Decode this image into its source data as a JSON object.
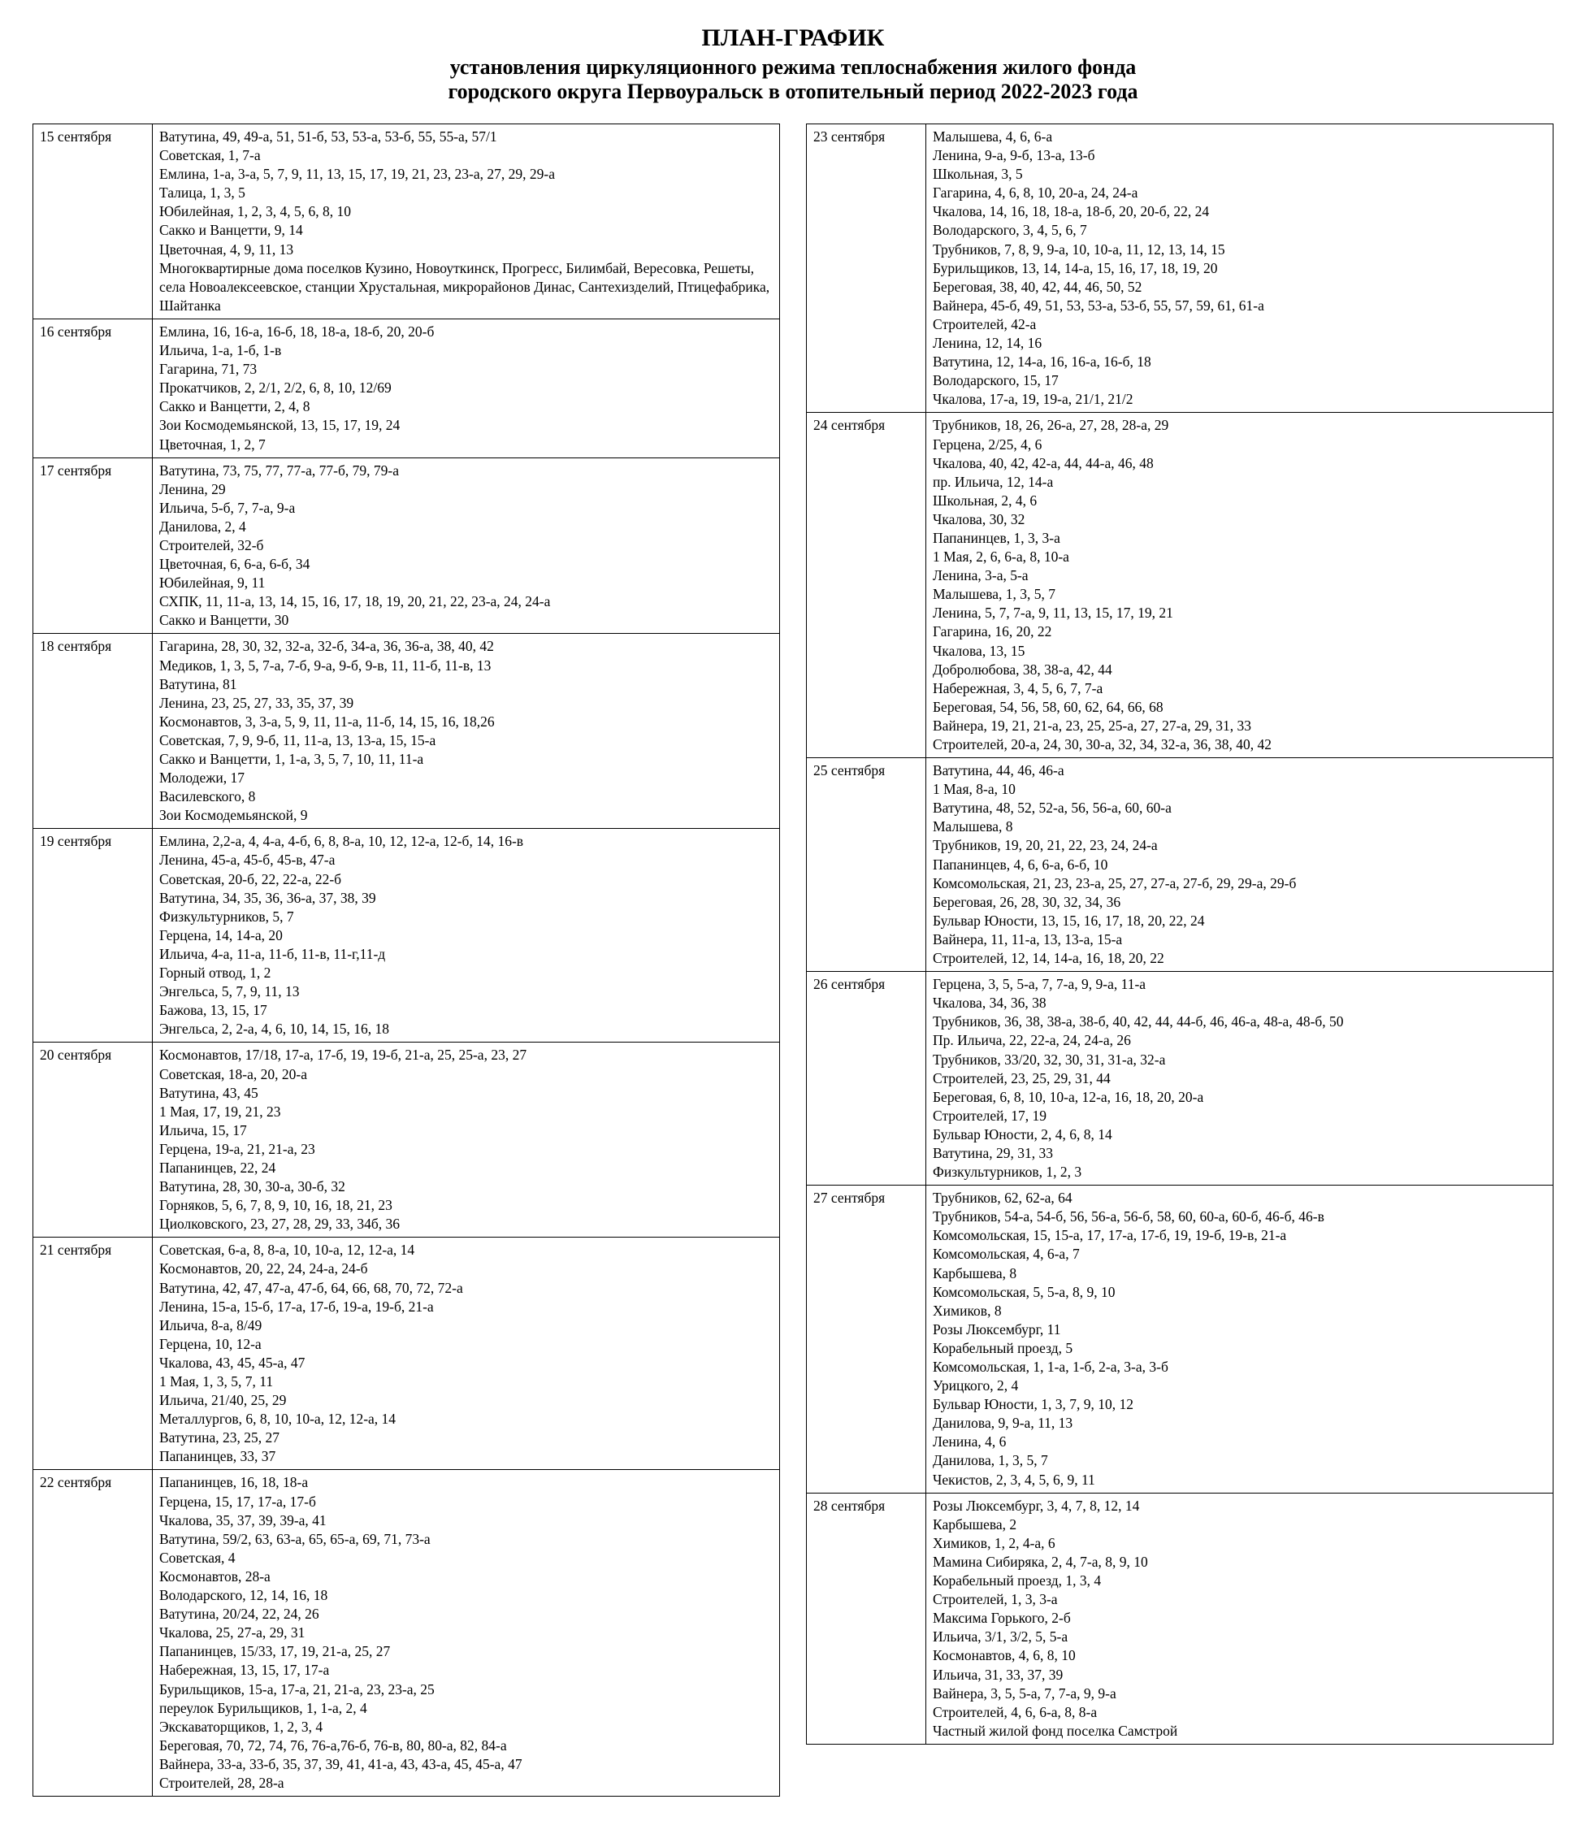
{
  "title": {
    "line1": "ПЛАН-ГРАФИК",
    "line2": "установления циркуляционного режима теплоснабжения жилого фонда",
    "line3": "городского округа Первоуральск в отопительный период 2022-2023 года"
  },
  "leftRows": [
    {
      "date": "15 сентября",
      "lines": [
        "Ватутина, 49, 49-а, 51, 51-б, 53, 53-а, 53-б, 55, 55-а, 57/1",
        "Советская, 1, 7-а",
        "Емлина, 1-а, 3-а, 5, 7, 9, 11, 13, 15, 17, 19, 21, 23, 23-а, 27, 29, 29-а",
        "Талица, 1, 3, 5",
        "Юбилейная, 1, 2, 3, 4, 5, 6, 8, 10",
        "Сакко и Ванцетти, 9, 14",
        "Цветочная, 4, 9, 11, 13",
        "Многоквартирные дома поселков Кузино, Новоуткинск, Прогресс, Билимбай, Вересовка, Решеты, села Новоалексеевское, станции Хрустальная, микрорайонов Динас, Сантехизделий, Птицефабрика, Шайтанка"
      ]
    },
    {
      "date": "16 сентября",
      "lines": [
        "Емлина, 16, 16-а, 16-б, 18, 18-а, 18-б, 20, 20-б",
        "Ильича, 1-а, 1-б, 1-в",
        "Гагарина, 71, 73",
        "Прокатчиков, 2, 2/1, 2/2, 6, 8, 10, 12/69",
        "Сакко и Ванцетти, 2, 4, 8",
        "Зои Космодемьянской, 13, 15, 17, 19, 24",
        "Цветочная, 1, 2, 7"
      ]
    },
    {
      "date": "17 сентября",
      "lines": [
        "Ватутина, 73, 75, 77, 77-а, 77-б, 79, 79-а",
        "Ленина, 29",
        "Ильича, 5-б, 7, 7-а, 9-а",
        "Данилова, 2, 4",
        "Строителей, 32-б",
        "Цветочная, 6, 6-а, 6-б, 34",
        "Юбилейная, 9, 11",
        "СХПК, 11, 11-а, 13, 14, 15, 16, 17, 18, 19, 20, 21, 22, 23-а, 24, 24-а",
        "Сакко и Ванцетти, 30"
      ]
    },
    {
      "date": "18 сентября",
      "lines": [
        "Гагарина, 28, 30, 32, 32-а, 32-б, 34-а, 36, 36-а, 38, 40, 42",
        "Медиков, 1, 3, 5, 7-а, 7-б, 9-а, 9-б, 9-в, 11, 11-б, 11-в, 13",
        "Ватутина, 81",
        "Ленина, 23, 25, 27, 33, 35, 37, 39",
        "Космонавтов, 3, 3-а, 5, 9, 11, 11-а, 11-б, 14, 15, 16, 18,26",
        "Советская, 7, 9, 9-б, 11, 11-а, 13, 13-а, 15, 15-а",
        "Сакко и Ванцетти, 1, 1-а, 3, 5, 7, 10, 11, 11-а",
        "Молодежи, 17",
        "Василевского, 8",
        "Зои Космодемьянской, 9"
      ]
    },
    {
      "date": "19 сентября",
      "lines": [
        "Емлина, 2,2-а, 4, 4-а, 4-б, 6, 8, 8-а, 10, 12, 12-а, 12-б, 14, 16-в",
        "Ленина, 45-а, 45-б, 45-в, 47-а",
        "Советская, 20-б, 22, 22-а, 22-б",
        "Ватутина, 34, 35, 36, 36-а, 37, 38, 39",
        "Физкультурников, 5, 7",
        "Герцена, 14, 14-а, 20",
        "Ильича, 4-а, 11-а, 11-б, 11-в, 11-г,11-д",
        "Горный отвод, 1, 2",
        "Энгельса, 5, 7, 9, 11, 13",
        "Бажова, 13, 15, 17",
        "Энгельса, 2, 2-а, 4, 6, 10, 14, 15, 16, 18"
      ]
    },
    {
      "date": "20 сентября",
      "lines": [
        "Космонавтов, 17/18, 17-а, 17-б, 19, 19-б, 21-а, 25, 25-а, 23, 27",
        "Советская, 18-а, 20, 20-а",
        "Ватутина, 43, 45",
        "1 Мая, 17, 19, 21, 23",
        "Ильича, 15, 17",
        "Герцена, 19-а, 21, 21-а, 23",
        "Папанинцев, 22, 24",
        "Ватутина, 28, 30, 30-а, 30-б, 32",
        "Горняков, 5, 6, 7, 8, 9, 10, 16, 18, 21, 23",
        "Циолковского, 23, 27, 28, 29, 33, 34б, 36"
      ]
    },
    {
      "date": "21 сентября",
      "lines": [
        "Советская, 6-а, 8, 8-а, 10, 10-а, 12, 12-а, 14",
        "Космонавтов, 20, 22, 24, 24-а, 24-б",
        "Ватутина, 42, 47, 47-а, 47-б, 64, 66, 68, 70, 72, 72-а",
        "Ленина, 15-а, 15-б, 17-а, 17-б, 19-а, 19-б, 21-а",
        "Ильича, 8-а, 8/49",
        "Герцена, 10, 12-а",
        "Чкалова, 43, 45, 45-а, 47",
        "1 Мая, 1, 3, 5, 7, 11",
        "Ильича, 21/40, 25, 29",
        "Металлургов, 6, 8, 10, 10-а, 12, 12-а, 14",
        "Ватутина, 23, 25, 27",
        "Папанинцев, 33, 37"
      ]
    },
    {
      "date": "22 сентября",
      "lines": [
        "Папанинцев, 16, 18, 18-а",
        "Герцена, 15, 17, 17-а, 17-б",
        "Чкалова, 35, 37, 39, 39-а, 41",
        "Ватутина, 59/2, 63, 63-а, 65, 65-а, 69, 71, 73-а",
        "Советская, 4",
        "Космонавтов, 28-а",
        "Володарского, 12, 14, 16, 18",
        "Ватутина, 20/24, 22, 24, 26",
        "Чкалова, 25, 27-а, 29, 31",
        "Папанинцев, 15/33, 17, 19, 21-а, 25, 27",
        "Набережная, 13, 15, 17, 17-а",
        "Бурильщиков, 15-а, 17-а, 21, 21-а, 23, 23-а, 25",
        "переулок Бурильщиков, 1, 1-а, 2, 4",
        "Экскаваторщиков, 1, 2, 3, 4",
        "Береговая, 70, 72, 74, 76, 76-а,76-б, 76-в, 80, 80-а, 82, 84-а",
        "Вайнера, 33-а, 33-б, 35, 37, 39, 41, 41-а, 43, 43-а, 45, 45-а, 47",
        "Строителей, 28, 28-а"
      ]
    }
  ],
  "rightRows": [
    {
      "date": "23 сентября",
      "lines": [
        "Малышева, 4, 6, 6-а",
        "Ленина, 9-а, 9-б, 13-а, 13-б",
        "Школьная, 3, 5",
        "Гагарина, 4, 6, 8, 10, 20-а, 24, 24-а",
        "Чкалова, 14, 16, 18, 18-а, 18-б, 20, 20-б, 22, 24",
        "Володарского, 3, 4, 5, 6, 7",
        "Трубников, 7, 8, 9, 9-а, 10, 10-а, 11, 12, 13, 14, 15",
        "Бурильщиков, 13, 14, 14-а, 15, 16, 17, 18, 19, 20",
        "Береговая, 38, 40, 42, 44, 46, 50, 52",
        "Вайнера, 45-б, 49, 51, 53, 53-а, 53-б, 55, 57, 59, 61, 61-а",
        "Строителей, 42-а",
        "Ленина, 12, 14, 16",
        "Ватутина, 12, 14-а, 16, 16-а, 16-б, 18",
        "Володарского, 15, 17",
        "Чкалова, 17-а, 19, 19-а, 21/1, 21/2"
      ]
    },
    {
      "date": "24 сентября",
      "lines": [
        "Трубников, 18, 26, 26-а, 27, 28, 28-а, 29",
        "Герцена, 2/25, 4, 6",
        "Чкалова, 40, 42, 42-а, 44, 44-а, 46, 48",
        "пр. Ильича, 12, 14-а",
        "Школьная, 2, 4, 6",
        "Чкалова, 30, 32",
        "Папанинцев, 1, 3, 3-а",
        "1 Мая, 2, 6, 6-а, 8, 10-а",
        "Ленина, 3-а, 5-а",
        "Малышева, 1, 3, 5, 7",
        "Ленина, 5, 7, 7-а, 9, 11, 13, 15, 17, 19, 21",
        "Гагарина, 16, 20, 22",
        "Чкалова, 13, 15",
        "Добролюбова, 38, 38-а, 42, 44",
        "Набережная, 3, 4, 5, 6, 7, 7-а",
        "Береговая, 54, 56, 58, 60, 62, 64, 66, 68",
        "Вайнера, 19, 21, 21-а, 23, 25, 25-а, 27, 27-а, 29, 31, 33",
        "Строителей, 20-а, 24, 30, 30-а, 32, 34, 32-а, 36, 38, 40, 42"
      ]
    },
    {
      "date": "25 сентября",
      "lines": [
        "Ватутина, 44, 46, 46-а",
        "1 Мая, 8-а, 10",
        "Ватутина, 48, 52, 52-а, 56, 56-а, 60, 60-а",
        "Малышева, 8",
        "Трубников, 19, 20, 21, 22, 23, 24, 24-а",
        "Папанинцев, 4, 6, 6-а, 6-б, 10",
        "Комсомольская, 21, 23, 23-а, 25, 27, 27-а, 27-б, 29, 29-а, 29-б",
        "Береговая, 26, 28, 30, 32, 34, 36",
        "Бульвар Юности, 13, 15, 16, 17, 18, 20, 22, 24",
        "Вайнера, 11, 11-а, 13, 13-а, 15-а",
        "Строителей, 12, 14, 14-а, 16, 18, 20, 22"
      ]
    },
    {
      "date": "26 сентября",
      "lines": [
        "Герцена, 3, 5, 5-а, 7, 7-а, 9, 9-а, 11-а",
        "Чкалова, 34, 36, 38",
        "Трубников, 36, 38, 38-а, 38-б, 40, 42, 44, 44-б, 46, 46-а, 48-а, 48-б, 50",
        "Пр. Ильича, 22, 22-а, 24, 24-а, 26",
        "Трубников, 33/20, 32, 30, 31, 31-а, 32-а",
        "Строителей, 23, 25, 29, 31, 44",
        "Береговая, 6, 8, 10, 10-а, 12-а, 16, 18, 20, 20-а",
        "Строителей, 17, 19",
        "Бульвар Юности, 2, 4, 6, 8, 14",
        "Ватутина, 29, 31, 33",
        "Физкультурников, 1, 2, 3"
      ]
    },
    {
      "date": "27 сентября",
      "lines": [
        "Трубников, 62, 62-а, 64",
        "Трубников, 54-а, 54-б, 56, 56-а, 56-б, 58, 60, 60-а, 60-б, 46-б, 46-в",
        "Комсомольская, 15, 15-а, 17, 17-а, 17-б, 19, 19-б, 19-в, 21-а",
        "Комсомольская, 4, 6-а, 7",
        "Карбышева, 8",
        "Комсомольская, 5, 5-а, 8, 9, 10",
        "Химиков, 8",
        "Розы Люксембург, 11",
        "Корабельный проезд, 5",
        "Комсомольская, 1, 1-а, 1-б, 2-а, 3-а, 3-б",
        "Урицкого, 2, 4",
        "Бульвар Юности, 1, 3, 7, 9, 10, 12",
        "Данилова, 9, 9-а, 11, 13",
        "Ленина, 4, 6",
        "Данилова, 1, 3, 5, 7",
        "Чекистов, 2, 3, 4, 5, 6, 9, 11"
      ]
    },
    {
      "date": "28 сентября",
      "lines": [
        "Розы Люксембург, 3, 4, 7, 8, 12, 14",
        "Карбышева, 2",
        "Химиков, 1, 2, 4-а, 6",
        "Мамина Сибиряка, 2, 4, 7-а, 8, 9, 10",
        "Корабельный проезд, 1, 3, 4",
        "Строителей, 1, 3, 3-а",
        "Максима Горького, 2-б",
        "Ильича, 3/1, 3/2, 5, 5-а",
        "Космонавтов, 4, 6, 8, 10",
        "Ильича, 31, 33, 37, 39",
        "Вайнера, 3, 5, 5-а, 7, 7-а, 9, 9-а",
        "Строителей, 4, 6, 6-а, 8, 8-а",
        "Частный жилой фонд поселка Самстрой"
      ]
    }
  ]
}
